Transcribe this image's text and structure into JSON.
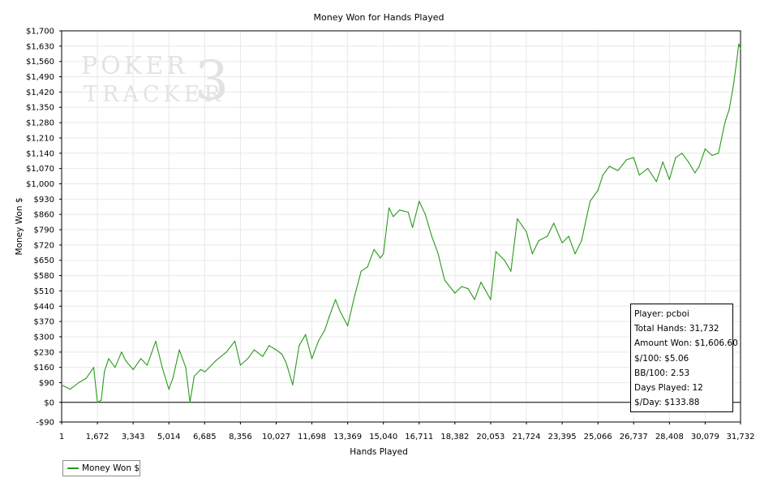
{
  "chart_data": {
    "type": "line",
    "title": "Money Won for Hands Played",
    "xlabel": "Hands Played",
    "ylabel": "Money Won $",
    "xlim": [
      1,
      31732
    ],
    "ylim": [
      -90,
      1700
    ],
    "grid": true,
    "legend_position": "bottom-left",
    "x_ticks": [
      1,
      1672,
      3343,
      5014,
      6685,
      8356,
      10027,
      11698,
      13369,
      15040,
      16711,
      18382,
      20053,
      21724,
      23395,
      25066,
      26737,
      28408,
      30079,
      31732
    ],
    "y_ticks": [
      -90,
      0,
      90,
      160,
      230,
      300,
      370,
      440,
      510,
      580,
      650,
      720,
      790,
      860,
      930,
      1000,
      1070,
      1140,
      1210,
      1280,
      1350,
      1420,
      1490,
      1560,
      1630,
      1700
    ],
    "series": [
      {
        "name": "Money Won $",
        "color": "#2a9a1c",
        "x": [
          1,
          400,
          800,
          1150,
          1500,
          1672,
          1850,
          2000,
          2200,
          2500,
          2800,
          3000,
          3343,
          3700,
          4000,
          4400,
          4700,
          5014,
          5200,
          5500,
          5800,
          6000,
          6200,
          6500,
          6700,
          7200,
          7700,
          8100,
          8356,
          8700,
          9000,
          9400,
          9700,
          10027,
          10300,
          10500,
          10800,
          11100,
          11400,
          11698,
          12000,
          12300,
          12500,
          12800,
          13000,
          13369,
          13700,
          14000,
          14300,
          14600,
          14900,
          15040,
          15300,
          15500,
          15800,
          16200,
          16400,
          16711,
          17000,
          17300,
          17600,
          17900,
          18382,
          18700,
          19000,
          19300,
          19600,
          20053,
          20300,
          20700,
          21000,
          21300,
          21724,
          22000,
          22300,
          22700,
          23000,
          23395,
          23700,
          24000,
          24300,
          24700,
          25066,
          25300,
          25600,
          26000,
          26400,
          26737,
          27000,
          27400,
          27800,
          28100,
          28408,
          28700,
          29000,
          29300,
          29600,
          29800,
          30079,
          30400,
          30700,
          31000,
          31200,
          31400,
          31550,
          31650,
          31732
        ],
        "y": [
          80,
          60,
          90,
          110,
          160,
          0,
          10,
          140,
          200,
          160,
          230,
          190,
          150,
          200,
          170,
          280,
          160,
          60,
          110,
          240,
          160,
          0,
          120,
          150,
          140,
          190,
          230,
          280,
          170,
          200,
          240,
          210,
          260,
          240,
          220,
          180,
          80,
          260,
          310,
          200,
          280,
          330,
          390,
          470,
          420,
          350,
          490,
          600,
          620,
          700,
          660,
          680,
          890,
          850,
          880,
          870,
          800,
          920,
          860,
          760,
          680,
          560,
          500,
          530,
          520,
          470,
          550,
          470,
          690,
          650,
          600,
          840,
          780,
          680,
          740,
          760,
          820,
          730,
          760,
          680,
          740,
          920,
          970,
          1040,
          1080,
          1060,
          1110,
          1120,
          1040,
          1070,
          1010,
          1100,
          1020,
          1120,
          1140,
          1100,
          1050,
          1080,
          1160,
          1130,
          1140,
          1280,
          1340,
          1450,
          1560,
          1640,
          1620
        ]
      }
    ]
  },
  "watermark": {
    "line1": "POKER",
    "line2": "TRACKER",
    "mark": "3"
  },
  "stats": {
    "player": "Player: pcboi",
    "total_hands": "Total Hands: 31,732",
    "amount_won": "Amount Won: $1,606.60",
    "per_100": "$/100: $5.06",
    "bb_per_100": "BB/100: 2.53",
    "days_played": "Days Played: 12",
    "per_day": "$/Day: $133.88"
  },
  "legend": {
    "label": "Money Won $"
  },
  "colors": {
    "line": "#2a9a1c",
    "grid": "#e8e8e8",
    "zero_line": "#000000"
  }
}
